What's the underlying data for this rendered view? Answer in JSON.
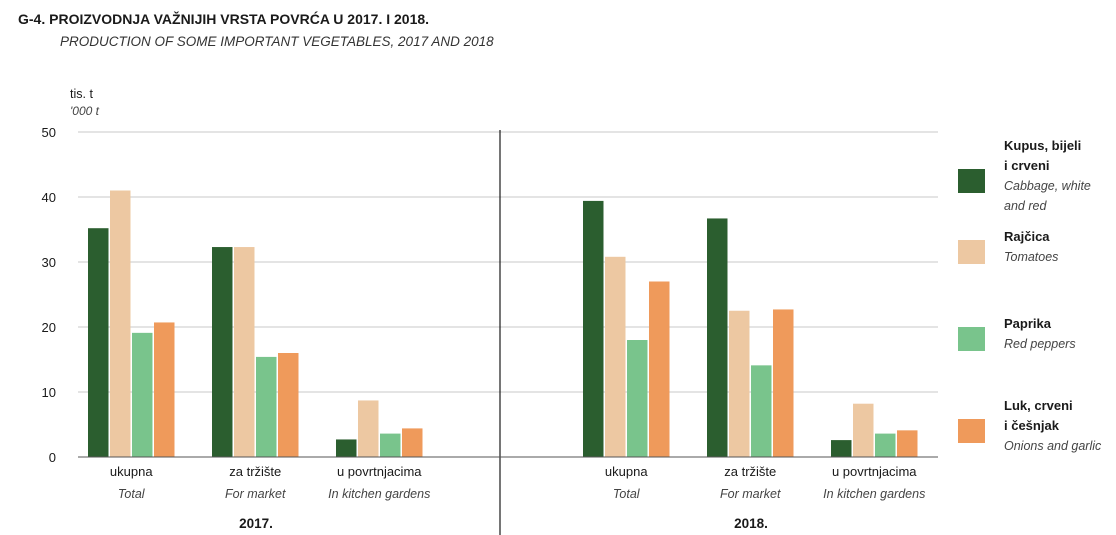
{
  "header": {
    "title": "G-4. PROIZVODNJA VAŽNIJIH VRSTA POVRĆA U 2017. I 2018.",
    "subtitle": "PRODUCTION OF SOME IMPORTANT VEGETABLES, 2017 AND 2018"
  },
  "chart_data": {
    "type": "bar",
    "title": "G-4. PROIZVODNJA VAŽNIJIH VRSTA POVRĆA U 2017. I 2018.",
    "subtitle": "PRODUCTION OF SOME IMPORTANT VEGETABLES, 2017 AND 2018",
    "ylabel": "tis. t",
    "ylabel_en": "'000 t",
    "ylim": [
      0,
      50
    ],
    "yticks": [
      0,
      10,
      20,
      30,
      40,
      50
    ],
    "grid": true,
    "legend_position": "right",
    "groups": [
      {
        "year": "2017.",
        "categories": [
          {
            "label": "ukupna",
            "label_en": "Total"
          },
          {
            "label": "za tržište",
            "label_en": "For market"
          },
          {
            "label": "u povrtnjacima",
            "label_en": "In kitchen gardens"
          }
        ]
      },
      {
        "year": "2018.",
        "categories": [
          {
            "label": "ukupna",
            "label_en": "Total"
          },
          {
            "label": "za tržište",
            "label_en": "For market"
          },
          {
            "label": "u povrtnjacima",
            "label_en": "In kitchen gardens"
          }
        ]
      }
    ],
    "series": [
      {
        "name": "Kupus, bijeli i crveni",
        "name_en": "Cabbage, white and red",
        "legend_lines": [
          "Kupus, bijeli",
          "i crveni"
        ],
        "legend_lines_en": [
          "Cabbage, white",
          "and red"
        ],
        "color": "#2b5e2f",
        "values": [
          35.2,
          32.3,
          2.7,
          39.4,
          36.7,
          2.6
        ]
      },
      {
        "name": "Rajčica",
        "name_en": "Tomatoes",
        "legend_lines": [
          "Rajčica"
        ],
        "legend_lines_en": [
          "Tomatoes"
        ],
        "color": "#edc8a2",
        "values": [
          41.0,
          32.3,
          8.7,
          30.8,
          22.5,
          8.2
        ]
      },
      {
        "name": "Paprika",
        "name_en": "Red peppers",
        "legend_lines": [
          "Paprika"
        ],
        "legend_lines_en": [
          "Red peppers"
        ],
        "color": "#79c48c",
        "values": [
          19.1,
          15.4,
          3.6,
          18.0,
          14.1,
          3.6
        ]
      },
      {
        "name": "Luk, crveni i češnjak",
        "name_en": "Onions and garlic",
        "legend_lines": [
          "Luk, crveni",
          "i češnjak"
        ],
        "legend_lines_en": [
          "Onions and garlic"
        ],
        "color": "#ef9a5b",
        "values": [
          20.7,
          16.0,
          4.4,
          27.0,
          22.7,
          4.1
        ]
      }
    ]
  }
}
